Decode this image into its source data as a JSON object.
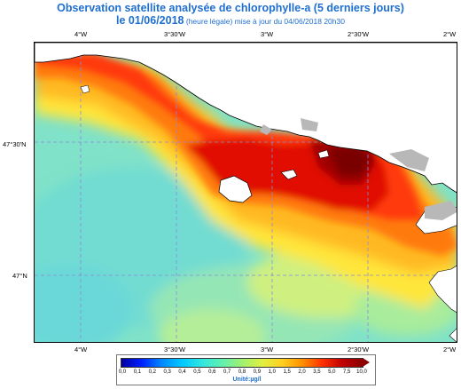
{
  "title": {
    "line1": "Observation satellite analysée de chlorophylle-a (5 derniers jours)",
    "line2_main": "le 01/06/2018",
    "line2_note": " (heure légale) mise à jour du 04/06/2018 20h30"
  },
  "axes": {
    "top_ticks": [
      "4°W",
      "3°30'W",
      "3°W",
      "2°30'W",
      "2°W"
    ],
    "bottom_ticks": [
      "4°W",
      "3°30'W",
      "3°W",
      "2°30'W",
      "2°W"
    ],
    "left_ticks": [
      "47°30'N",
      "47°N"
    ]
  },
  "legend": {
    "values": [
      "0,0",
      "0,1",
      "0,2",
      "0,3",
      "0,4",
      "0,5",
      "0,6",
      "0,7",
      "0,8",
      "0,9",
      "1,0",
      "1,5",
      "2,0",
      "3,5",
      "5,0",
      "7,5",
      "10,0"
    ],
    "unit": "Unité:µg/l",
    "colors": [
      "#0000a0",
      "#0020ff",
      "#0088ff",
      "#00c8ff",
      "#30e6e0",
      "#60f0b0",
      "#a0f070",
      "#e0f040",
      "#ffd020",
      "#ff9000",
      "#ff3000",
      "#c00000",
      "#8a0000"
    ]
  },
  "map": {
    "land_color": "#ffffff",
    "island_color": "#b8b8b8",
    "gridline_color": "#8a8ad8"
  }
}
